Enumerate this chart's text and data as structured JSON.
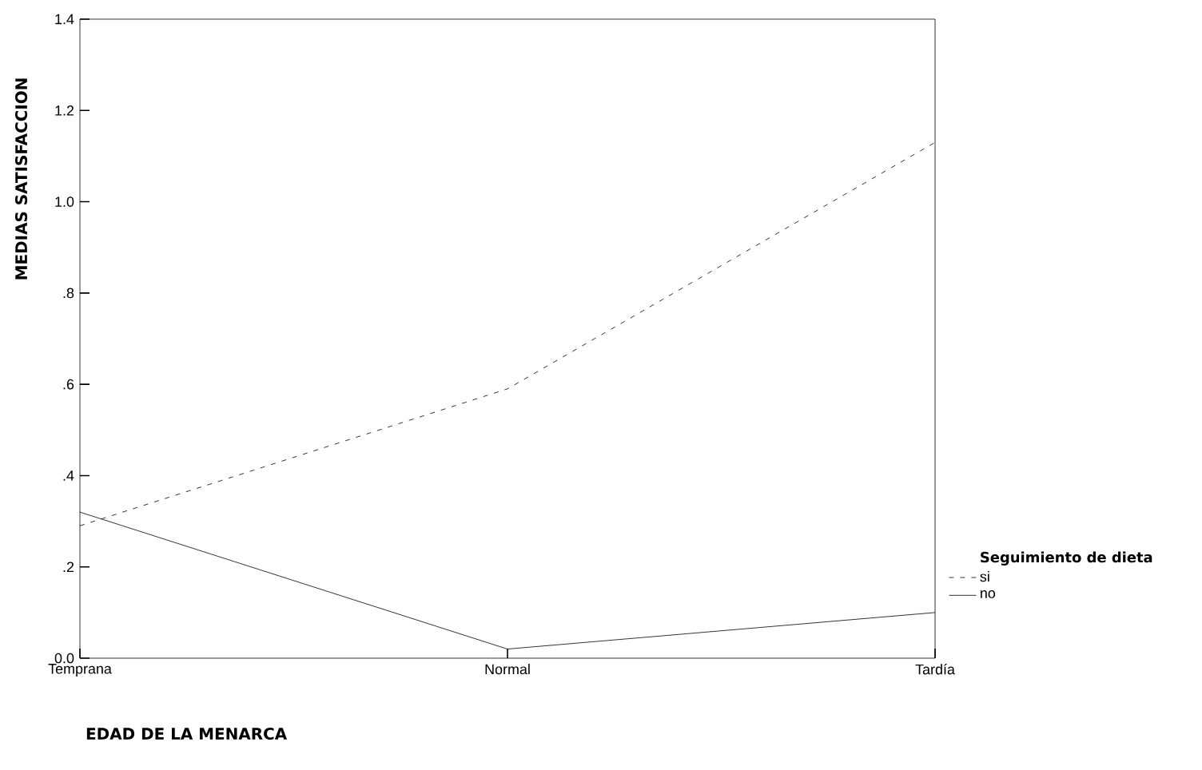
{
  "chart_data": {
    "type": "line",
    "xlabel": "EDAD DE LA MENARCA",
    "ylabel": "MEDIAS SATISFACCION",
    "legend_title": "Seguimiento de dieta",
    "categories": [
      "Temprana",
      "Normal",
      "Tardía"
    ],
    "series": [
      {
        "name": "si",
        "color": "#000000",
        "line_style": "dashed",
        "values": [
          0.29,
          0.59,
          1.13
        ]
      },
      {
        "name": "no",
        "color": "#000000",
        "line_style": "solid",
        "values": [
          0.32,
          0.02,
          0.1
        ]
      }
    ],
    "ylim": [
      0,
      1.4
    ],
    "yticks": [
      {
        "value": 0,
        "label": "0.0"
      },
      {
        "value": 0.2,
        "label": ".2"
      },
      {
        "value": 0.4,
        "label": ".4"
      },
      {
        "value": 0.6,
        "label": ".6"
      },
      {
        "value": 0.8,
        "label": ".8"
      },
      {
        "value": 1.0,
        "label": "1.0"
      },
      {
        "value": 1.2,
        "label": "1.2"
      },
      {
        "value": 1.4,
        "label": "1.4"
      }
    ],
    "legend": "right",
    "marker": "none",
    "grid": false
  }
}
